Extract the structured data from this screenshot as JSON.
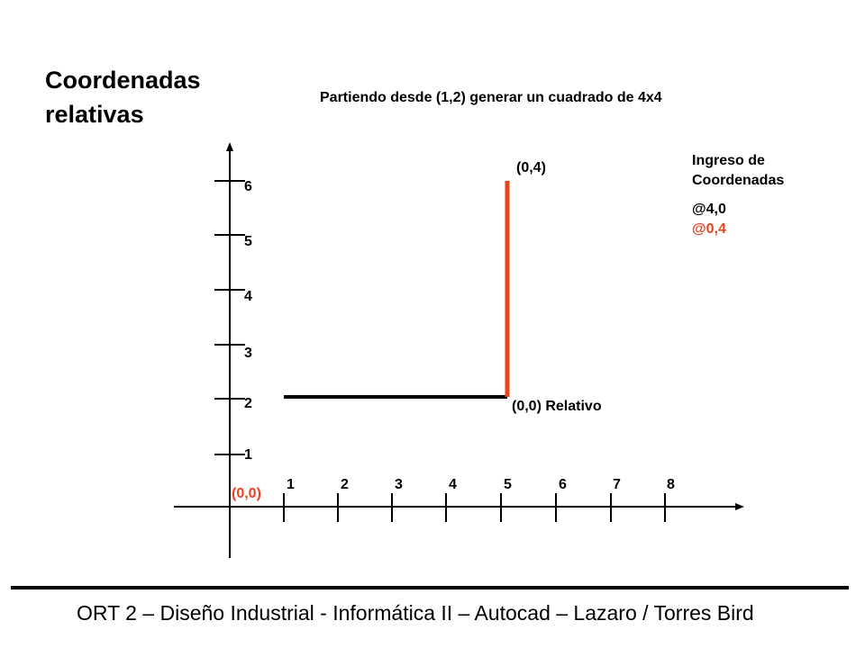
{
  "slide": {
    "title_line1": "Coordenadas",
    "title_line2": "relativas",
    "subtitle": "Partiendo desde (1,2) generar un cuadrado de 4x4",
    "footer": "ORT 2 – Diseño Industrial - Informática II – Autocad – Lazaro / Torres Bird"
  },
  "axes": {
    "x_ticks": [
      "1",
      "2",
      "3",
      "4",
      "5",
      "6",
      "7",
      "8"
    ],
    "y_ticks": [
      "1",
      "2",
      "3",
      "4",
      "5",
      "6"
    ],
    "origin_label": "(0,0)"
  },
  "annotations": {
    "endpoint_label": "(0,4)",
    "relative_origin_label": "(0,0) Relativo"
  },
  "input_panel": {
    "heading_line1": "Ingreso de",
    "heading_line2": "Coordenadas",
    "command1": "@4,0",
    "command2": "@0,4"
  },
  "colors": {
    "accent": "#e8431e",
    "axis": "#000000",
    "segment1": "#000000",
    "segment2": "#e8431e"
  }
}
